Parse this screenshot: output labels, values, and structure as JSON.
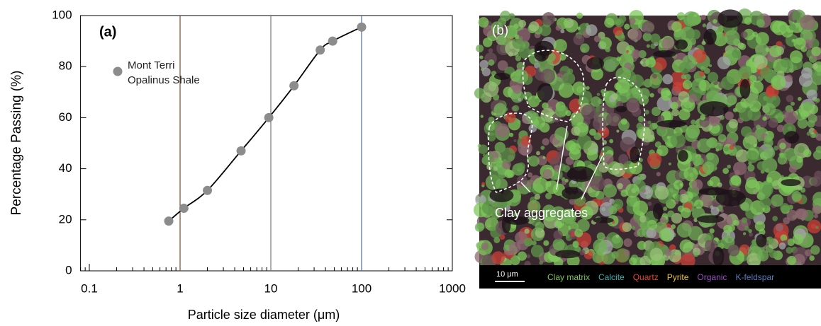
{
  "chart_data": {
    "type": "scatter",
    "title": "(a)",
    "x_label": "Particle size diameter  (μm)",
    "y_label": "Percentage Passing (%)",
    "xscale": "log",
    "xlim": [
      0.08,
      1000
    ],
    "xticks": [
      0.1,
      1,
      10,
      100,
      1000
    ],
    "ylim": [
      0,
      100
    ],
    "yticks": [
      0,
      20,
      40,
      60,
      80,
      100
    ],
    "grid": true,
    "fit_line": true,
    "series": [
      {
        "name": "Mont Terri Opalinus Shale",
        "color": "#8c8c8c",
        "x": [
          0.75,
          1.1,
          2,
          4.7,
          9.5,
          18,
          35,
          48,
          100
        ],
        "values": [
          19.5,
          24.5,
          31.5,
          47,
          60,
          72.5,
          86.5,
          90,
          95.5
        ]
      }
    ]
  },
  "image_panel": {
    "label": "(b)",
    "annotation": "Clay aggregates",
    "scale_bar": "10 μm",
    "legend": [
      {
        "name": "Clay matrix",
        "color": "#7ec85a"
      },
      {
        "name": "Calcite",
        "color": "#3fb3b0"
      },
      {
        "name": "Quartz",
        "color": "#e0452d"
      },
      {
        "name": "Pyrite",
        "color": "#e8c23a"
      },
      {
        "name": "Organic",
        "color": "#9a4fc0"
      },
      {
        "name": "K-feldspar",
        "color": "#5a7ab8"
      }
    ]
  }
}
